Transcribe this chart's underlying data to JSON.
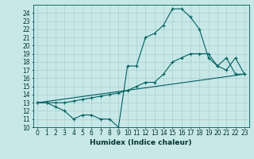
{
  "title": "",
  "xlabel": "Humidex (Indice chaleur)",
  "ylabel": "",
  "background_color": "#c8e8e8",
  "grid_color": "#aacece",
  "line_color": "#006060",
  "xlim": [
    -0.5,
    23.5
  ],
  "ylim": [
    10,
    25
  ],
  "yticks": [
    10,
    11,
    12,
    13,
    14,
    15,
    16,
    17,
    18,
    19,
    20,
    21,
    22,
    23,
    24
  ],
  "xticks": [
    0,
    1,
    2,
    3,
    4,
    5,
    6,
    7,
    8,
    9,
    10,
    11,
    12,
    13,
    14,
    15,
    16,
    17,
    18,
    19,
    20,
    21,
    22,
    23
  ],
  "series1_x": [
    0,
    1,
    2,
    3,
    4,
    5,
    6,
    7,
    8,
    9,
    10,
    11,
    12,
    13,
    14,
    15,
    16,
    17,
    18,
    19,
    20,
    21,
    22,
    23
  ],
  "series1_y": [
    13,
    13,
    12.5,
    12,
    11,
    11.5,
    11.5,
    11,
    11,
    10,
    17.5,
    17.5,
    21,
    21.5,
    22.5,
    24.5,
    24.5,
    23.5,
    22,
    18.5,
    17.5,
    18.5,
    16.5,
    16.5
  ],
  "series2_x": [
    0,
    1,
    2,
    3,
    4,
    5,
    6,
    7,
    8,
    9,
    10,
    11,
    12,
    13,
    14,
    15,
    16,
    17,
    18,
    19,
    20,
    21,
    22,
    23
  ],
  "series2_y": [
    13,
    13,
    13,
    13,
    13.2,
    13.4,
    13.6,
    13.8,
    14,
    14.2,
    14.5,
    15,
    15.5,
    15.5,
    16.5,
    18,
    18.5,
    19,
    19,
    19,
    17.5,
    17,
    18.5,
    16.5
  ],
  "series3_x": [
    0,
    23
  ],
  "series3_y": [
    13,
    16.5
  ],
  "label_fontsize": 5.5,
  "xlabel_fontsize": 6.5,
  "linewidth": 0.8,
  "markersize": 3,
  "markeredgewidth": 0.8
}
